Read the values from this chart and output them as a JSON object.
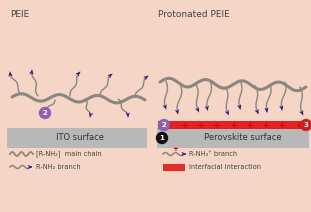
{
  "bg_color": "#f5d5c5",
  "title_left": "PEIE",
  "title_right": "Protonated PEIE",
  "label_ito": "ITO surface",
  "label_perovskite": "Perovskite surface",
  "legend_main_chain": "[R-NH₂]  main chain",
  "legend_branch_left": "R-NH₂ branch",
  "legend_branch_right": "R-NH₃⁺ branch",
  "legend_interfacial": "Interfacial interaction",
  "chain_color": "#888880",
  "arrow_color": "#2a0a80",
  "surface_color": "#b8b8b8",
  "red_band_color": "#e01010",
  "cross_color": "#cc0000",
  "num_circle_purple": "#9060b0",
  "num_circle_black": "#111111",
  "num_circle_red": "#cc2020"
}
